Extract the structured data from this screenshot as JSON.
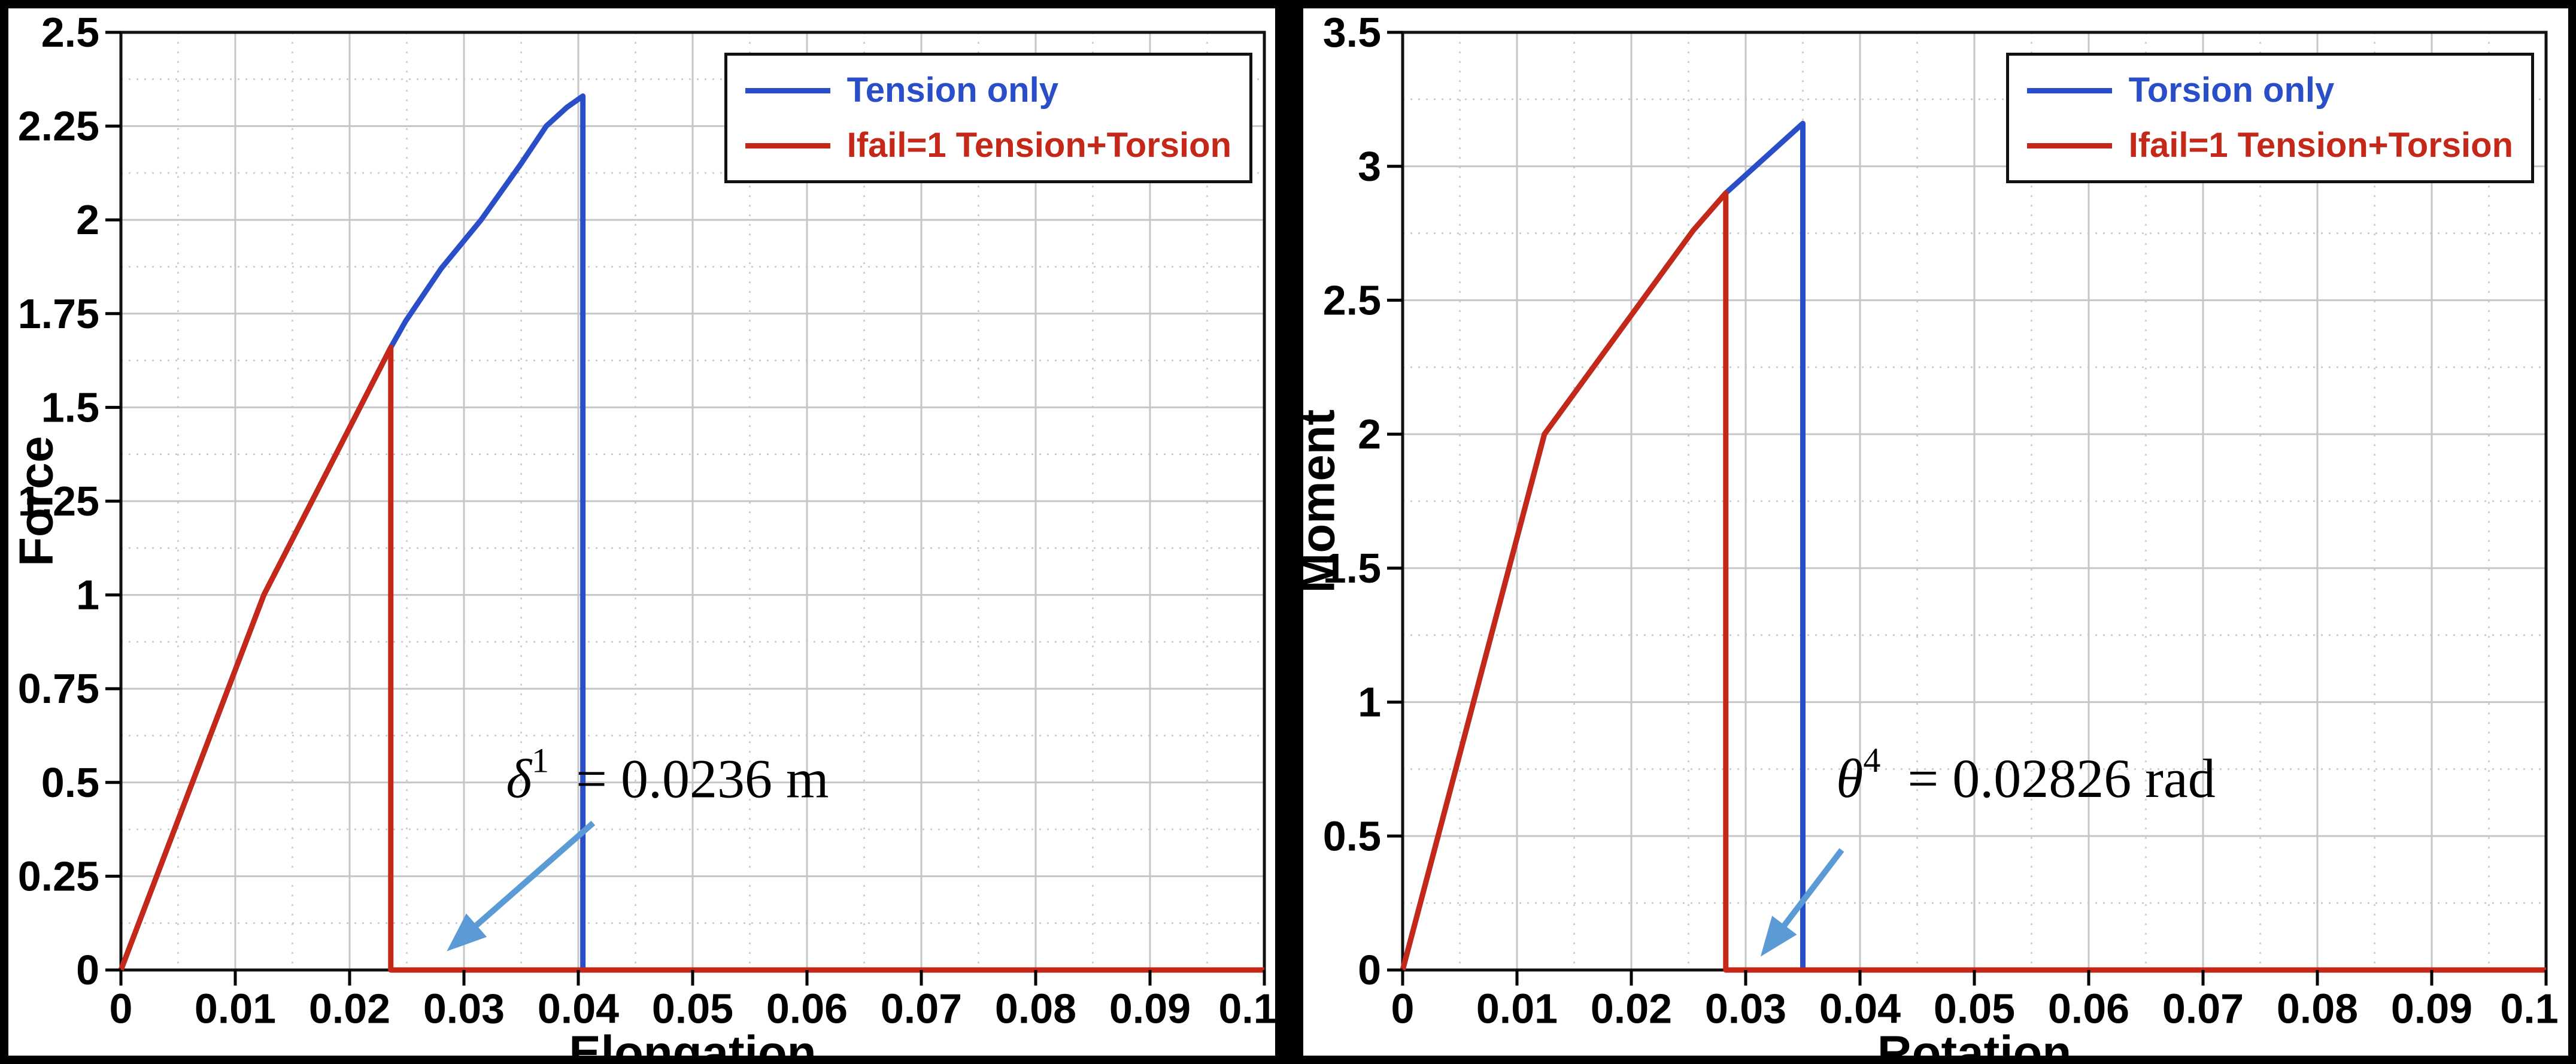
{
  "page": {
    "background": "#000000",
    "panel_background": "#ffffff",
    "frame_color": "#111111",
    "grid_major_color": "#c6c6c6",
    "grid_minor_color": "#c9c9c9",
    "annotation_arrow_color": "#5b9bd5"
  },
  "chart_data": [
    {
      "type": "line",
      "title": "",
      "xlabel": "Elongation",
      "ylabel": "Force",
      "xlim": [
        0,
        0.1
      ],
      "ylim": [
        0,
        2.5
      ],
      "grid": "on",
      "legend_position": "top-right",
      "x_tick_values": [
        0,
        0.01,
        0.02,
        0.03,
        0.04,
        0.05,
        0.06,
        0.07,
        0.08,
        0.09,
        0.1
      ],
      "x_tick_labels": [
        "0",
        "0.01",
        "0.02",
        "0.03",
        "0.04",
        "0.05",
        "0.06",
        "0.07",
        "0.08",
        "0.09",
        "0.1"
      ],
      "y_tick_values": [
        0,
        0.25,
        0.5,
        0.75,
        1,
        1.25,
        1.5,
        1.75,
        2,
        2.25,
        2.5
      ],
      "y_tick_labels": [
        "0",
        "0.25",
        "0.5",
        "0.75",
        "1",
        "1.25",
        "1.5",
        "1.75",
        "2",
        "2.25",
        "2.5"
      ],
      "x_minor_step": 0.005,
      "y_minor_step": 0.125,
      "legend": [
        {
          "label": "Tension only",
          "color": "#2a4ec8"
        },
        {
          "label": "Ifail=1 Tension+Torsion",
          "color": "#c32818"
        }
      ],
      "series": [
        {
          "name": "Tension only",
          "color": "#2a4ec8",
          "points": [
            [
              0,
              0
            ],
            [
              0.0125,
              1.0
            ],
            [
              0.0236,
              1.66
            ],
            [
              0.0249,
              1.73
            ],
            [
              0.028,
              1.87
            ],
            [
              0.0315,
              2.0
            ],
            [
              0.035,
              2.15
            ],
            [
              0.0372,
              2.25
            ],
            [
              0.039,
              2.3
            ],
            [
              0.0404,
              2.33
            ],
            [
              0.0404,
              0
            ],
            [
              0.1,
              0
            ]
          ]
        },
        {
          "name": "Ifail=1 Tension+Torsion",
          "color": "#c32818",
          "points": [
            [
              0,
              0
            ],
            [
              0.0125,
              1.0
            ],
            [
              0.0236,
              1.66
            ],
            [
              0.0236,
              0
            ],
            [
              0.1,
              0
            ]
          ]
        }
      ],
      "annotation": {
        "symbol": "δ",
        "superscript": "1",
        "text": "= 0.0236 m",
        "text_xy": [
          0.0478,
          0.512
        ],
        "arrow_from": [
          0.0413,
          0.392
        ],
        "arrow_to": [
          0.0285,
          0.05
        ],
        "arrow_color": "#5b9bd5"
      }
    },
    {
      "type": "line",
      "title": "",
      "xlabel": "Rotation",
      "ylabel": "Moment",
      "xlim": [
        0,
        0.1
      ],
      "ylim": [
        0,
        3.5
      ],
      "grid": "on",
      "legend_position": "top-right",
      "x_tick_values": [
        0,
        0.01,
        0.02,
        0.03,
        0.04,
        0.05,
        0.06,
        0.07,
        0.08,
        0.09,
        0.1
      ],
      "x_tick_labels": [
        "0",
        "0.01",
        "0.02",
        "0.03",
        "0.04",
        "0.05",
        "0.06",
        "0.07",
        "0.08",
        "0.09",
        "0.1"
      ],
      "y_tick_values": [
        0,
        0.5,
        1,
        1.5,
        2,
        2.5,
        3,
        3.5
      ],
      "y_tick_labels": [
        "0",
        "0.5",
        "1",
        "1.5",
        "2",
        "2.5",
        "3",
        "3.5"
      ],
      "x_minor_step": 0.005,
      "y_minor_step": 0.25,
      "legend": [
        {
          "label": "Torsion only",
          "color": "#2a4ec8"
        },
        {
          "label": "Ifail=1 Tension+Torsion",
          "color": "#c32818"
        }
      ],
      "series": [
        {
          "name": "Torsion only",
          "color": "#2a4ec8",
          "points": [
            [
              0,
              0
            ],
            [
              0.0124,
              2.0
            ],
            [
              0.0254,
              2.76
            ],
            [
              0.02826,
              2.9
            ],
            [
              0.035,
              3.16
            ],
            [
              0.035,
              0
            ],
            [
              0.1,
              0
            ]
          ]
        },
        {
          "name": "Ifail=1 Tension+Torsion",
          "color": "#c32818",
          "points": [
            [
              0,
              0
            ],
            [
              0.0124,
              2.0
            ],
            [
              0.0254,
              2.76
            ],
            [
              0.02826,
              2.9
            ],
            [
              0.02826,
              0
            ],
            [
              0.1,
              0
            ]
          ]
        }
      ],
      "annotation": {
        "symbol": "θ",
        "superscript": "4",
        "text": "= 0.02826 rad",
        "text_xy": [
          0.0545,
          0.717
        ],
        "arrow_from": [
          0.0384,
          0.448
        ],
        "arrow_to": [
          0.0313,
          0.05
        ],
        "arrow_color": "#5b9bd5"
      }
    }
  ]
}
